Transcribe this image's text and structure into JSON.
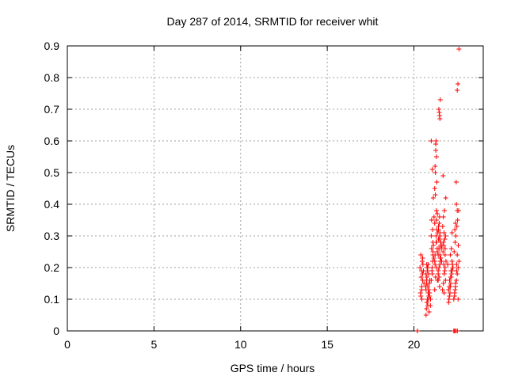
{
  "chart_data": {
    "type": "scatter",
    "title": "Day 287 of 2014, SRMTID for receiver whit",
    "xlabel": "GPS time / hours",
    "ylabel": "SRMTID / TECUs",
    "xlim": [
      0,
      24
    ],
    "ylim": [
      0,
      0.9
    ],
    "grid": true,
    "marker": "+",
    "color": "#ff0000",
    "x_ticks": [
      0,
      5,
      10,
      15,
      20
    ],
    "x_tick_labels": [
      "0",
      "5",
      "10",
      "15",
      "20"
    ],
    "y_ticks": [
      0,
      0.1,
      0.2,
      0.3,
      0.4,
      0.5,
      0.6,
      0.7,
      0.8,
      0.9
    ],
    "y_tick_labels": [
      "0",
      "0.1",
      "0.2",
      "0.3",
      "0.4",
      "0.5",
      "0.6",
      "0.7",
      "0.8",
      "0.9"
    ],
    "series": [
      {
        "name": "SRMTID",
        "x": [
          20.2,
          20.2,
          22.4,
          22.4,
          22.4,
          22.3,
          22.35,
          22.5,
          22.5,
          20.4,
          20.45,
          20.5,
          20.35,
          20.42,
          20.48,
          20.55,
          20.4,
          20.5,
          20.45,
          20.52,
          20.38,
          20.44,
          20.58,
          20.5,
          20.46,
          20.7,
          20.72,
          20.75,
          20.78,
          20.8,
          20.82,
          20.85,
          20.88,
          20.7,
          20.74,
          20.76,
          20.8,
          20.84,
          20.9,
          20.92,
          20.95,
          20.75,
          20.8,
          20.85,
          20.78,
          20.72,
          20.82,
          20.88,
          20.7,
          20.76,
          20.86,
          20.9,
          20.68,
          20.74,
          20.96,
          21.0,
          21.05,
          21.1,
          21.0,
          21.08,
          21.12,
          21.02,
          21.06,
          21.1,
          21.15,
          21.0,
          21.04,
          21.08,
          21.12,
          21.16,
          21.02,
          21.06,
          21.2,
          21.25,
          21.3,
          21.22,
          21.28,
          21.32,
          21.35,
          21.2,
          21.24,
          21.3,
          21.26,
          21.22,
          21.34,
          21.28,
          21.2,
          21.3,
          21.24,
          21.32,
          21.26,
          21.22,
          21.36,
          21.28,
          21.4,
          21.45,
          21.5,
          21.55,
          21.42,
          21.48,
          21.52,
          21.44,
          21.5,
          21.46,
          21.4,
          21.54,
          21.48,
          21.42,
          21.5,
          21.46,
          21.52,
          21.44,
          21.48,
          21.5,
          21.65,
          21.7,
          21.75,
          21.8,
          21.85,
          21.68,
          21.72,
          21.78,
          21.82,
          21.66,
          21.74,
          21.8,
          21.7,
          21.76,
          21.84,
          21.68,
          21.72,
          21.78,
          21.82,
          21.74,
          21.7,
          21.8,
          22.0,
          22.05,
          22.1,
          22.15,
          22.2,
          22.25,
          22.02,
          22.08,
          22.12,
          22.18,
          22.22,
          22.0,
          22.06,
          22.14,
          22.2,
          22.1,
          22.16,
          22.04,
          22.12,
          22.24,
          22.3,
          22.35,
          22.4,
          22.45,
          22.5,
          22.55,
          22.6,
          22.32,
          22.38,
          22.42,
          22.48,
          22.52,
          22.58,
          22.34,
          22.4,
          22.46,
          22.5,
          22.56,
          22.36,
          22.44,
          22.5,
          22.54,
          22.6,
          22.38,
          22.46,
          21.3,
          21.35,
          21.4,
          21.45,
          21.5,
          21.55,
          21.6,
          21.4,
          21.45,
          21.5,
          21.52,
          21.48,
          21.95,
          22.2,
          21.2,
          21.1,
          21.38,
          21.42,
          21.3,
          21.62,
          21.58,
          22.4,
          22.45,
          22.5,
          22.55
        ],
        "y": [
          0.0,
          0.0,
          0.0,
          0.0,
          0.0,
          0.0,
          0.0,
          0.0,
          0.0,
          0.11,
          0.14,
          0.18,
          0.2,
          0.17,
          0.22,
          0.19,
          0.24,
          0.16,
          0.13,
          0.21,
          0.12,
          0.19,
          0.15,
          0.23,
          0.1,
          0.05,
          0.07,
          0.09,
          0.1,
          0.08,
          0.12,
          0.11,
          0.06,
          0.13,
          0.15,
          0.09,
          0.14,
          0.1,
          0.12,
          0.16,
          0.08,
          0.17,
          0.2,
          0.18,
          0.19,
          0.16,
          0.21,
          0.15,
          0.18,
          0.2,
          0.13,
          0.11,
          0.14,
          0.21,
          0.1,
          0.16,
          0.2,
          0.25,
          0.3,
          0.22,
          0.27,
          0.35,
          0.18,
          0.28,
          0.23,
          0.6,
          0.19,
          0.32,
          0.42,
          0.36,
          0.26,
          0.51,
          0.13,
          0.17,
          0.2,
          0.24,
          0.28,
          0.32,
          0.37,
          0.45,
          0.5,
          0.55,
          0.59,
          0.21,
          0.26,
          0.3,
          0.34,
          0.38,
          0.43,
          0.47,
          0.57,
          0.52,
          0.16,
          0.6,
          0.16,
          0.2,
          0.24,
          0.28,
          0.32,
          0.36,
          0.22,
          0.26,
          0.3,
          0.34,
          0.18,
          0.27,
          0.14,
          0.29,
          0.67,
          0.69,
          0.73,
          0.7,
          0.68,
          0.31,
          0.13,
          0.15,
          0.18,
          0.2,
          0.22,
          0.25,
          0.27,
          0.29,
          0.3,
          0.33,
          0.12,
          0.24,
          0.36,
          0.38,
          0.42,
          0.49,
          0.21,
          0.19,
          0.16,
          0.31,
          0.28,
          0.26,
          0.09,
          0.11,
          0.14,
          0.17,
          0.19,
          0.2,
          0.1,
          0.12,
          0.15,
          0.18,
          0.21,
          0.13,
          0.16,
          0.19,
          0.22,
          0.24,
          0.26,
          0.14,
          0.17,
          0.2,
          0.1,
          0.12,
          0.14,
          0.16,
          0.18,
          0.2,
          0.22,
          0.25,
          0.28,
          0.3,
          0.33,
          0.35,
          0.38,
          0.11,
          0.15,
          0.19,
          0.24,
          0.27,
          0.32,
          0.47,
          0.76,
          0.78,
          0.89,
          0.13,
          0.21,
          0.28,
          0.25,
          0.24,
          0.26,
          0.3,
          0.23,
          0.22,
          0.19,
          0.17,
          0.21,
          0.23,
          0.29,
          0.21,
          0.31,
          0.22,
          0.24,
          0.31,
          0.33,
          0.35,
          0.27,
          0.26,
          0.34,
          0.4,
          0.38,
          0.1
        ]
      }
    ]
  }
}
